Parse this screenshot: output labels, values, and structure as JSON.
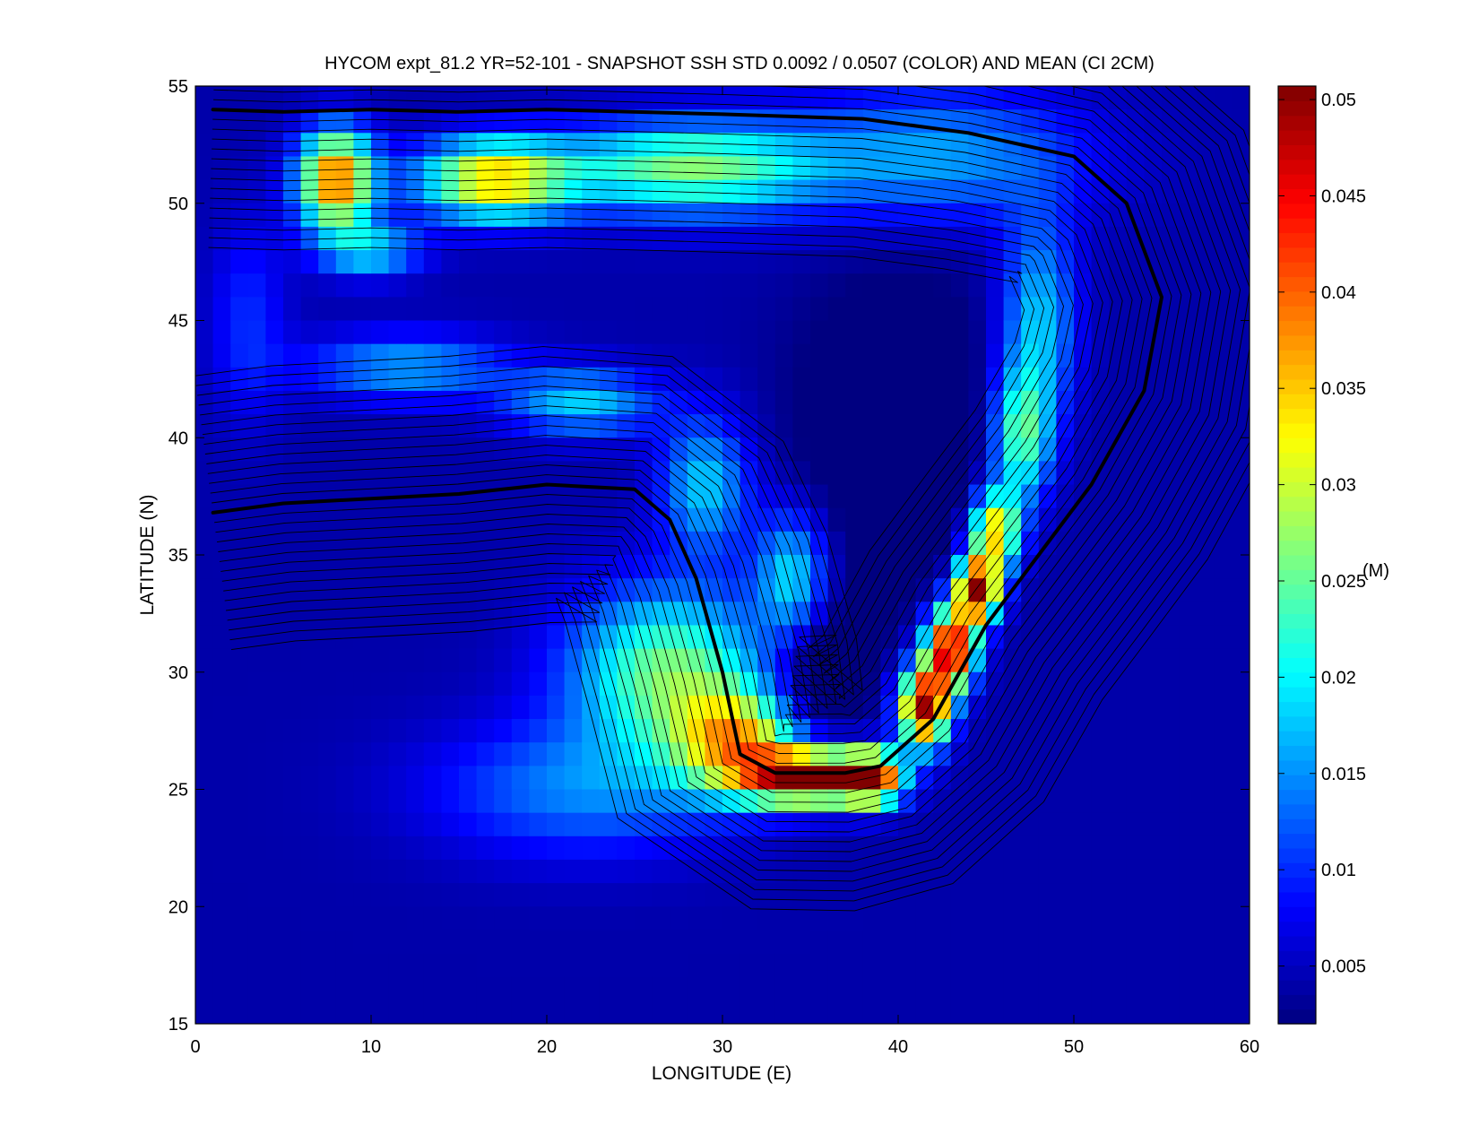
{
  "chart_data": {
    "type": "heatmap",
    "title": "HYCOM expt_81.2 YR=52-101 - SNAPSHOT SSH STD 0.0092 / 0.0507 (COLOR) AND MEAN (CI 2CM)",
    "xlabel": "LONGITUDE (E)",
    "ylabel": "LATITUDE (N)",
    "xlim": [
      0,
      60
    ],
    "ylim": [
      15,
      55
    ],
    "xticks": [
      0,
      10,
      20,
      30,
      40,
      50,
      60
    ],
    "yticks": [
      15,
      20,
      25,
      30,
      35,
      40,
      45,
      50,
      55
    ],
    "colorbar": {
      "label": "(M)",
      "colormap": "jet",
      "clim": [
        0.002,
        0.0507
      ],
      "ticks": [
        "0.005",
        "0.01",
        "0.015",
        "0.02",
        "0.025",
        "0.03",
        "0.035",
        "0.04",
        "0.045",
        "0.05"
      ]
    },
    "std_min": 0.0092,
    "std_max": 0.0507,
    "contour_interval_cm": 2,
    "grid": false,
    "background_value": 0.004,
    "std_features": [
      {
        "lon": 8,
        "lat": 51,
        "sx": 1.5,
        "sy": 1.5,
        "amp": 0.036
      },
      {
        "lon": 17,
        "lat": 51,
        "sx": 3.0,
        "sy": 1.2,
        "amp": 0.03
      },
      {
        "lon": 28,
        "lat": 51.5,
        "sx": 5.0,
        "sy": 1.4,
        "amp": 0.022
      },
      {
        "lon": 42,
        "lat": 52,
        "sx": 6.0,
        "sy": 2.0,
        "amp": 0.012
      },
      {
        "lon": 10,
        "lat": 48,
        "sx": 2.0,
        "sy": 0.8,
        "amp": 0.014
      },
      {
        "lon": 12,
        "lat": 43,
        "sx": 4.0,
        "sy": 1.0,
        "amp": 0.012
      },
      {
        "lon": 22,
        "lat": 41.5,
        "sx": 3.0,
        "sy": 1.0,
        "amp": 0.014
      },
      {
        "lon": 29,
        "lat": 38,
        "sx": 1.8,
        "sy": 2.0,
        "amp": 0.014
      },
      {
        "lon": 34,
        "lat": 34,
        "sx": 1.5,
        "sy": 2.0,
        "amp": 0.016
      },
      {
        "lon": 27,
        "lat": 30,
        "sx": 4.0,
        "sy": 2.5,
        "amp": 0.022
      },
      {
        "lon": 31,
        "lat": 27,
        "sx": 2.5,
        "sy": 1.5,
        "amp": 0.026
      },
      {
        "lon": 35,
        "lat": 25.5,
        "sx": 2.5,
        "sy": 0.8,
        "amp": 0.045
      },
      {
        "lon": 38.5,
        "lat": 25.5,
        "sx": 1.2,
        "sy": 0.8,
        "amp": 0.036
      },
      {
        "lon": 22,
        "lat": 25,
        "sx": 6.0,
        "sy": 2.0,
        "amp": 0.01
      },
      {
        "lon": 41.5,
        "lat": 28.5,
        "sx": 1.0,
        "sy": 1.2,
        "amp": 0.044
      },
      {
        "lon": 43,
        "lat": 31,
        "sx": 1.0,
        "sy": 1.2,
        "amp": 0.044
      },
      {
        "lon": 44.5,
        "lat": 33.5,
        "sx": 0.9,
        "sy": 1.0,
        "amp": 0.044
      },
      {
        "lon": 45.5,
        "lat": 36,
        "sx": 1.0,
        "sy": 1.2,
        "amp": 0.03
      },
      {
        "lon": 47,
        "lat": 40,
        "sx": 1.2,
        "sy": 2.0,
        "amp": 0.02
      },
      {
        "lon": 48,
        "lat": 45,
        "sx": 1.5,
        "sy": 3.0,
        "amp": 0.014
      },
      {
        "lon": 3,
        "lat": 45,
        "sx": 1.5,
        "sy": 3.0,
        "amp": 0.006
      }
    ],
    "quiet_zones": [
      {
        "lon": 40,
        "lat": 40,
        "sx": 4.0,
        "sy": 5.0,
        "amp": 0.006
      },
      {
        "lon": 35,
        "lat": 30,
        "sx": 2.0,
        "sy": 2.5,
        "amp": 0.008
      }
    ],
    "mean_zero_contours": [
      {
        "name": "northern",
        "points": [
          [
            1,
            54
          ],
          [
            5,
            53.9
          ],
          [
            10,
            54
          ],
          [
            15,
            53.9
          ],
          [
            20,
            54
          ],
          [
            30,
            53.8
          ],
          [
            38,
            53.6
          ],
          [
            44,
            53
          ],
          [
            50,
            52
          ],
          [
            53,
            50
          ],
          [
            55,
            46
          ],
          [
            54,
            42
          ],
          [
            51,
            38
          ],
          [
            48,
            35
          ],
          [
            45,
            32
          ],
          [
            42,
            28
          ],
          [
            39,
            26
          ],
          [
            37,
            25.7
          ],
          [
            33,
            25.7
          ],
          [
            31,
            26.5
          ],
          [
            30,
            30
          ],
          [
            28.5,
            34
          ],
          [
            27,
            36.5
          ],
          [
            25,
            37.8
          ],
          [
            20,
            38
          ],
          [
            15,
            37.6
          ],
          [
            10,
            37.4
          ],
          [
            5,
            37.2
          ],
          [
            1,
            36.8
          ]
        ]
      }
    ]
  }
}
